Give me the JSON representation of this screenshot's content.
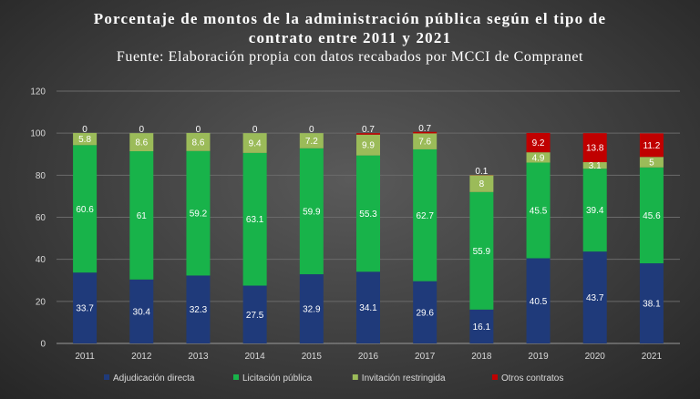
{
  "chart_data": {
    "type": "bar",
    "stacked": true,
    "title_lines": [
      "Porcentaje de montos de la administración pública según el tipo de",
      "contrato entre 2011 y 2021"
    ],
    "subtitle": "Fuente: Elaboración propia con datos recabados por MCCI de Compranet",
    "categories": [
      "2011",
      "2012",
      "2013",
      "2014",
      "2015",
      "2016",
      "2017",
      "2018",
      "2019",
      "2020",
      "2021"
    ],
    "ylim": [
      0,
      120
    ],
    "yticks": [
      0,
      20,
      40,
      60,
      80,
      100,
      120
    ],
    "grid": true,
    "legend_position": "bottom",
    "series": [
      {
        "name": "Adjudicación directa",
        "color": "#1f3a7a",
        "values": [
          33.7,
          30.4,
          32.3,
          27.5,
          32.9,
          34.1,
          29.6,
          16.1,
          40.5,
          43.7,
          38.1
        ]
      },
      {
        "name": "Licitación pública",
        "color": "#18b34a",
        "values": [
          60.6,
          61,
          59.2,
          63.1,
          59.9,
          55.3,
          62.7,
          55.9,
          45.5,
          39.4,
          45.6
        ]
      },
      {
        "name": "Invitación restringida",
        "color": "#9bbb59",
        "values": [
          5.8,
          8.6,
          8.6,
          9.4,
          7.2,
          9.9,
          7.6,
          8,
          4.9,
          3.1,
          5
        ]
      },
      {
        "name": "Otros contratos",
        "color": "#c00000",
        "values": [
          0,
          0,
          0,
          0,
          0,
          0.7,
          0.7,
          0.1,
          9.2,
          13.8,
          11.2
        ]
      }
    ]
  }
}
